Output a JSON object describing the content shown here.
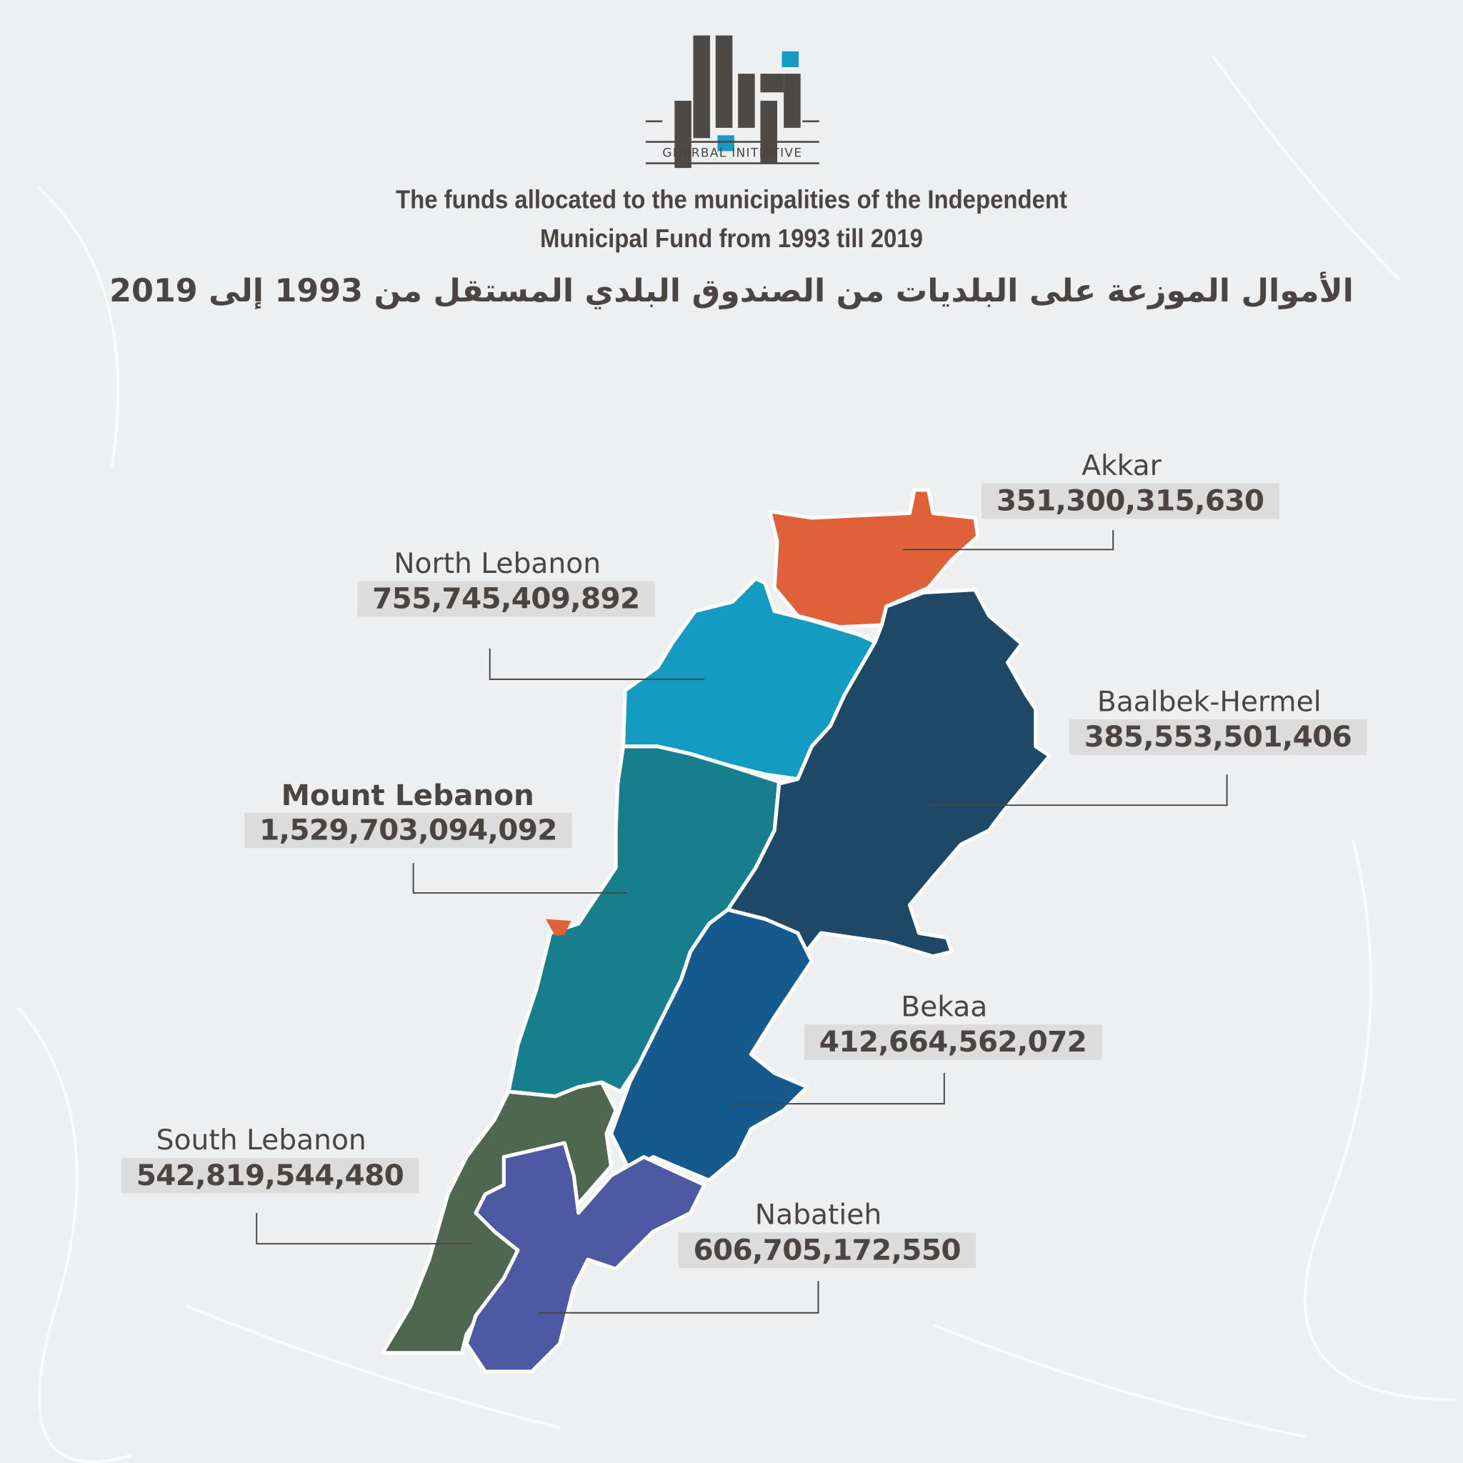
{
  "logo": {
    "text": "GHERBAL INITIATIVE",
    "accent": "#159bc4",
    "dark": "#4d4946"
  },
  "title": {
    "en_line1": "The funds allocated to the municipalities of the Independent",
    "en_line2": "Municipal Fund from 1993 till 2019",
    "ar": "الأموال الموزعة على البلديات من الصندوق البلدي المستقل من 1993 إلى 2019"
  },
  "chart_data": {
    "type": "choropleth-map",
    "title": "The funds allocated to the municipalities of the Independent Municipal Fund from 1993 till 2019",
    "regions": [
      {
        "name": "Akkar",
        "value": "351,300,315,630",
        "color": "#e0603a"
      },
      {
        "name": "North Lebanon",
        "value": "755,745,409,892",
        "color": "#139bc2"
      },
      {
        "name": "Baalbek-Hermel",
        "value": "385,553,501,406",
        "color": "#1f4866"
      },
      {
        "name": "Mount Lebanon",
        "value": "1,529,703,094,092",
        "color": "#177e8e",
        "emphasized": true
      },
      {
        "name": "Bekaa",
        "value": "412,664,562,072",
        "color": "#145a8c"
      },
      {
        "name": "South Lebanon",
        "value": "542,819,544,480",
        "color": "#4f6650"
      },
      {
        "name": "Nabatieh",
        "value": "606,705,172,550",
        "color": "#4e59a3"
      }
    ],
    "beirut_color": "#e0603a"
  }
}
